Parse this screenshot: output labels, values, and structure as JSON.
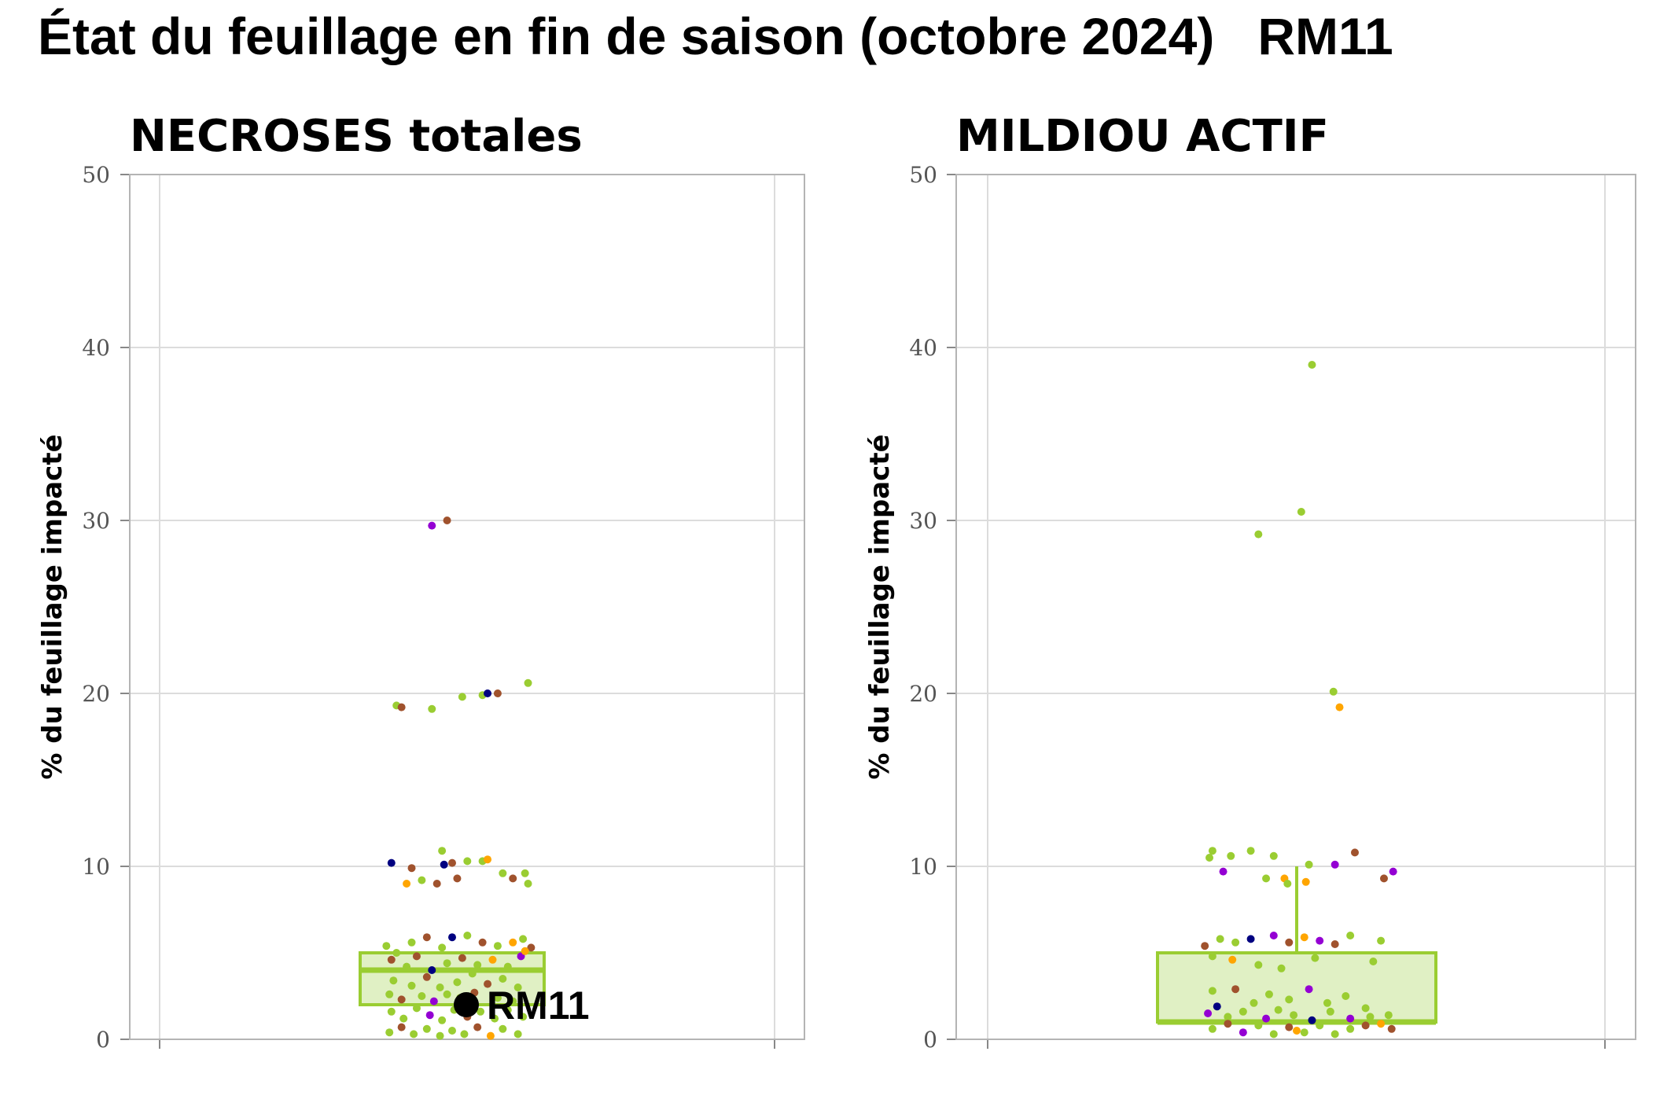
{
  "title": "État du feuillage en fin de saison (octobre 2024)   RM11",
  "colors": {
    "box_fill": "#e0f0c4",
    "box_stroke": "#9acd32",
    "green": "#9acd32",
    "brown": "#a0522d",
    "purple": "#9400d3",
    "orange": "#ffa500",
    "navy": "#000080",
    "highlight": "#000000"
  },
  "chart_data": [
    {
      "type": "box",
      "title": "NECROSES totales",
      "ylabel": "% du feuillage impacté",
      "ylim": [
        0,
        50
      ],
      "yticks": [
        "0",
        "10",
        "20",
        "30",
        "40",
        "50"
      ],
      "grid": true,
      "box": {
        "q1": 2.0,
        "median": 4.0,
        "q3": 5.0,
        "whisker_low": 0,
        "whisker_high": 5.0
      },
      "highlight": {
        "label": "RM11",
        "value": 2.0
      },
      "points": [
        {
          "x": -0.55,
          "y": 19.3,
          "c": "green"
        },
        {
          "x": -0.5,
          "y": 19.2,
          "c": "brown"
        },
        {
          "x": -0.2,
          "y": 19.1,
          "c": "green"
        },
        {
          "x": 0.1,
          "y": 19.8,
          "c": "green"
        },
        {
          "x": 0.3,
          "y": 19.9,
          "c": "green"
        },
        {
          "x": 0.35,
          "y": 20.0,
          "c": "navy"
        },
        {
          "x": 0.45,
          "y": 20.0,
          "c": "brown"
        },
        {
          "x": 0.75,
          "y": 20.6,
          "c": "green"
        },
        {
          "x": -0.2,
          "y": 29.7,
          "c": "purple"
        },
        {
          "x": -0.05,
          "y": 30.0,
          "c": "brown"
        },
        {
          "x": -0.6,
          "y": 10.2,
          "c": "navy"
        },
        {
          "x": -0.4,
          "y": 9.9,
          "c": "brown"
        },
        {
          "x": -0.3,
          "y": 9.2,
          "c": "green"
        },
        {
          "x": -0.45,
          "y": 9.0,
          "c": "orange"
        },
        {
          "x": -0.15,
          "y": 9.0,
          "c": "brown"
        },
        {
          "x": -0.1,
          "y": 10.9,
          "c": "green"
        },
        {
          "x": -0.08,
          "y": 10.1,
          "c": "navy"
        },
        {
          "x": 0.0,
          "y": 10.2,
          "c": "brown"
        },
        {
          "x": 0.05,
          "y": 9.3,
          "c": "brown"
        },
        {
          "x": 0.15,
          "y": 10.3,
          "c": "green"
        },
        {
          "x": 0.3,
          "y": 10.3,
          "c": "green"
        },
        {
          "x": 0.35,
          "y": 10.4,
          "c": "orange"
        },
        {
          "x": 0.5,
          "y": 9.6,
          "c": "green"
        },
        {
          "x": 0.6,
          "y": 9.3,
          "c": "brown"
        },
        {
          "x": 0.72,
          "y": 9.6,
          "c": "green"
        },
        {
          "x": 0.75,
          "y": 9.0,
          "c": "green"
        },
        {
          "x": -0.65,
          "y": 5.4,
          "c": "green"
        },
        {
          "x": -0.55,
          "y": 5.0,
          "c": "green"
        },
        {
          "x": -0.4,
          "y": 5.6,
          "c": "green"
        },
        {
          "x": -0.25,
          "y": 5.9,
          "c": "brown"
        },
        {
          "x": -0.1,
          "y": 5.3,
          "c": "green"
        },
        {
          "x": 0.0,
          "y": 5.9,
          "c": "navy"
        },
        {
          "x": 0.15,
          "y": 6.0,
          "c": "green"
        },
        {
          "x": 0.3,
          "y": 5.6,
          "c": "brown"
        },
        {
          "x": 0.45,
          "y": 5.4,
          "c": "green"
        },
        {
          "x": 0.6,
          "y": 5.6,
          "c": "orange"
        },
        {
          "x": 0.7,
          "y": 5.8,
          "c": "green"
        },
        {
          "x": 0.78,
          "y": 5.3,
          "c": "brown"
        },
        {
          "x": -0.6,
          "y": 4.6,
          "c": "brown"
        },
        {
          "x": -0.45,
          "y": 4.2,
          "c": "green"
        },
        {
          "x": -0.35,
          "y": 4.8,
          "c": "brown"
        },
        {
          "x": -0.2,
          "y": 4.0,
          "c": "navy"
        },
        {
          "x": -0.05,
          "y": 4.4,
          "c": "green"
        },
        {
          "x": 0.1,
          "y": 4.7,
          "c": "brown"
        },
        {
          "x": 0.25,
          "y": 4.3,
          "c": "green"
        },
        {
          "x": 0.4,
          "y": 4.6,
          "c": "orange"
        },
        {
          "x": 0.55,
          "y": 4.2,
          "c": "green"
        },
        {
          "x": 0.68,
          "y": 4.8,
          "c": "purple"
        },
        {
          "x": 0.72,
          "y": 5.1,
          "c": "orange"
        },
        {
          "x": -0.58,
          "y": 3.4,
          "c": "green"
        },
        {
          "x": -0.4,
          "y": 3.1,
          "c": "green"
        },
        {
          "x": -0.25,
          "y": 3.6,
          "c": "brown"
        },
        {
          "x": -0.12,
          "y": 3.0,
          "c": "green"
        },
        {
          "x": 0.05,
          "y": 3.3,
          "c": "green"
        },
        {
          "x": 0.2,
          "y": 3.8,
          "c": "green"
        },
        {
          "x": 0.35,
          "y": 3.2,
          "c": "brown"
        },
        {
          "x": 0.5,
          "y": 3.5,
          "c": "green"
        },
        {
          "x": 0.65,
          "y": 3.0,
          "c": "green"
        },
        {
          "x": -0.62,
          "y": 2.6,
          "c": "green"
        },
        {
          "x": -0.5,
          "y": 2.3,
          "c": "brown"
        },
        {
          "x": -0.3,
          "y": 2.5,
          "c": "green"
        },
        {
          "x": -0.18,
          "y": 2.2,
          "c": "purple"
        },
        {
          "x": -0.05,
          "y": 2.6,
          "c": "green"
        },
        {
          "x": 0.08,
          "y": 2.4,
          "c": "green"
        },
        {
          "x": 0.22,
          "y": 2.7,
          "c": "brown"
        },
        {
          "x": 0.45,
          "y": 2.4,
          "c": "green"
        },
        {
          "x": 0.6,
          "y": 2.2,
          "c": "green"
        },
        {
          "x": -0.6,
          "y": 1.6,
          "c": "green"
        },
        {
          "x": -0.48,
          "y": 1.2,
          "c": "green"
        },
        {
          "x": -0.35,
          "y": 1.8,
          "c": "green"
        },
        {
          "x": -0.22,
          "y": 1.4,
          "c": "purple"
        },
        {
          "x": -0.1,
          "y": 1.1,
          "c": "green"
        },
        {
          "x": 0.02,
          "y": 1.7,
          "c": "green"
        },
        {
          "x": 0.15,
          "y": 1.3,
          "c": "brown"
        },
        {
          "x": 0.28,
          "y": 1.6,
          "c": "green"
        },
        {
          "x": 0.42,
          "y": 1.2,
          "c": "green"
        },
        {
          "x": 0.55,
          "y": 1.7,
          "c": "green"
        },
        {
          "x": 0.7,
          "y": 1.3,
          "c": "green"
        },
        {
          "x": -0.62,
          "y": 0.4,
          "c": "green"
        },
        {
          "x": -0.5,
          "y": 0.7,
          "c": "brown"
        },
        {
          "x": -0.38,
          "y": 0.3,
          "c": "green"
        },
        {
          "x": -0.25,
          "y": 0.6,
          "c": "green"
        },
        {
          "x": -0.12,
          "y": 0.2,
          "c": "green"
        },
        {
          "x": 0.0,
          "y": 0.5,
          "c": "green"
        },
        {
          "x": 0.12,
          "y": 0.3,
          "c": "green"
        },
        {
          "x": 0.25,
          "y": 0.7,
          "c": "brown"
        },
        {
          "x": 0.38,
          "y": 0.2,
          "c": "orange"
        },
        {
          "x": 0.5,
          "y": 0.6,
          "c": "green"
        },
        {
          "x": 0.65,
          "y": 0.3,
          "c": "green"
        }
      ]
    },
    {
      "type": "box",
      "title": "MILDIOU ACTIF",
      "ylabel": "% du feuillage impacté",
      "ylim": [
        0,
        50
      ],
      "yticks": [
        "0",
        "10",
        "20",
        "30",
        "40",
        "50"
      ],
      "grid": true,
      "box": {
        "q1": 1.0,
        "median": 1.0,
        "q3": 5.0,
        "whisker_low": 0,
        "whisker_high": 10.0
      },
      "points": [
        {
          "x": 0.1,
          "y": 39.0,
          "c": "green"
        },
        {
          "x": -0.25,
          "y": 29.2,
          "c": "green"
        },
        {
          "x": 0.03,
          "y": 30.5,
          "c": "green"
        },
        {
          "x": 0.24,
          "y": 20.1,
          "c": "green"
        },
        {
          "x": 0.28,
          "y": 19.2,
          "c": "orange"
        },
        {
          "x": -0.57,
          "y": 10.5,
          "c": "green"
        },
        {
          "x": -0.55,
          "y": 10.9,
          "c": "green"
        },
        {
          "x": -0.43,
          "y": 10.6,
          "c": "green"
        },
        {
          "x": -0.3,
          "y": 10.9,
          "c": "green"
        },
        {
          "x": -0.15,
          "y": 10.6,
          "c": "green"
        },
        {
          "x": 0.08,
          "y": 10.1,
          "c": "green"
        },
        {
          "x": 0.25,
          "y": 10.1,
          "c": "purple"
        },
        {
          "x": 0.38,
          "y": 10.8,
          "c": "brown"
        },
        {
          "x": 0.63,
          "y": 9.7,
          "c": "purple"
        },
        {
          "x": -0.48,
          "y": 9.7,
          "c": "purple"
        },
        {
          "x": -0.2,
          "y": 9.3,
          "c": "green"
        },
        {
          "x": -0.08,
          "y": 9.3,
          "c": "orange"
        },
        {
          "x": -0.06,
          "y": 9.0,
          "c": "green"
        },
        {
          "x": 0.06,
          "y": 9.1,
          "c": "orange"
        },
        {
          "x": 0.57,
          "y": 9.3,
          "c": "brown"
        },
        {
          "x": -0.6,
          "y": 5.4,
          "c": "brown"
        },
        {
          "x": -0.5,
          "y": 5.8,
          "c": "green"
        },
        {
          "x": -0.4,
          "y": 5.6,
          "c": "green"
        },
        {
          "x": -0.3,
          "y": 5.8,
          "c": "navy"
        },
        {
          "x": -0.15,
          "y": 6.0,
          "c": "purple"
        },
        {
          "x": -0.05,
          "y": 5.6,
          "c": "brown"
        },
        {
          "x": 0.05,
          "y": 5.9,
          "c": "orange"
        },
        {
          "x": 0.15,
          "y": 5.7,
          "c": "purple"
        },
        {
          "x": 0.25,
          "y": 5.5,
          "c": "brown"
        },
        {
          "x": 0.35,
          "y": 6.0,
          "c": "green"
        },
        {
          "x": 0.55,
          "y": 5.7,
          "c": "green"
        },
        {
          "x": -0.55,
          "y": 4.8,
          "c": "green"
        },
        {
          "x": -0.42,
          "y": 4.6,
          "c": "orange"
        },
        {
          "x": -0.25,
          "y": 4.3,
          "c": "green"
        },
        {
          "x": -0.1,
          "y": 4.1,
          "c": "green"
        },
        {
          "x": 0.12,
          "y": 4.7,
          "c": "green"
        },
        {
          "x": 0.5,
          "y": 4.5,
          "c": "green"
        },
        {
          "x": -0.55,
          "y": 2.8,
          "c": "green"
        },
        {
          "x": -0.4,
          "y": 2.9,
          "c": "brown"
        },
        {
          "x": -0.28,
          "y": 2.1,
          "c": "green"
        },
        {
          "x": -0.18,
          "y": 2.6,
          "c": "green"
        },
        {
          "x": -0.05,
          "y": 2.3,
          "c": "green"
        },
        {
          "x": 0.08,
          "y": 2.9,
          "c": "purple"
        },
        {
          "x": 0.2,
          "y": 2.1,
          "c": "green"
        },
        {
          "x": 0.32,
          "y": 2.5,
          "c": "green"
        },
        {
          "x": 0.45,
          "y": 1.8,
          "c": "green"
        },
        {
          "x": -0.52,
          "y": 1.9,
          "c": "navy"
        },
        {
          "x": -0.58,
          "y": 1.5,
          "c": "purple"
        },
        {
          "x": -0.45,
          "y": 1.3,
          "c": "green"
        },
        {
          "x": -0.35,
          "y": 1.6,
          "c": "green"
        },
        {
          "x": -0.2,
          "y": 1.2,
          "c": "purple"
        },
        {
          "x": -0.12,
          "y": 1.7,
          "c": "green"
        },
        {
          "x": -0.02,
          "y": 1.4,
          "c": "green"
        },
        {
          "x": 0.1,
          "y": 1.1,
          "c": "navy"
        },
        {
          "x": 0.22,
          "y": 1.6,
          "c": "green"
        },
        {
          "x": 0.35,
          "y": 1.2,
          "c": "purple"
        },
        {
          "x": 0.48,
          "y": 1.3,
          "c": "green"
        },
        {
          "x": 0.6,
          "y": 1.4,
          "c": "green"
        },
        {
          "x": -0.55,
          "y": 0.6,
          "c": "green"
        },
        {
          "x": -0.45,
          "y": 0.9,
          "c": "brown"
        },
        {
          "x": -0.35,
          "y": 0.4,
          "c": "purple"
        },
        {
          "x": -0.25,
          "y": 0.8,
          "c": "green"
        },
        {
          "x": -0.15,
          "y": 0.3,
          "c": "green"
        },
        {
          "x": -0.05,
          "y": 0.7,
          "c": "brown"
        },
        {
          "x": 0.0,
          "y": 0.5,
          "c": "orange"
        },
        {
          "x": 0.05,
          "y": 0.4,
          "c": "green"
        },
        {
          "x": 0.15,
          "y": 0.8,
          "c": "green"
        },
        {
          "x": 0.25,
          "y": 0.3,
          "c": "green"
        },
        {
          "x": 0.35,
          "y": 0.6,
          "c": "green"
        },
        {
          "x": 0.45,
          "y": 0.8,
          "c": "brown"
        },
        {
          "x": 0.55,
          "y": 0.9,
          "c": "orange"
        },
        {
          "x": 0.62,
          "y": 0.6,
          "c": "brown"
        }
      ]
    }
  ]
}
